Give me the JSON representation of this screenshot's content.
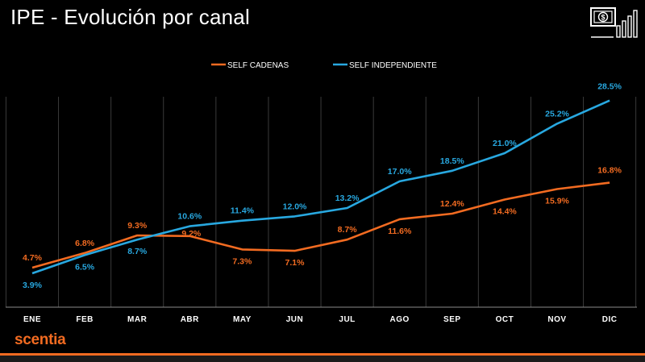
{
  "title": "IPE - Evolución por canal",
  "brand": "scentia",
  "logo_icon": "money-growth-icon",
  "colors": {
    "background": "#000000",
    "series_orange": "#f26b21",
    "series_blue": "#28a8e0",
    "grid": "#3a3a3a",
    "text": "#ffffff"
  },
  "chart_data": {
    "type": "line",
    "title": "IPE - Evolución por canal",
    "xlabel": "",
    "ylabel": "",
    "ylim": [
      0,
      30
    ],
    "grid": "vertical",
    "legend": "top-center",
    "categories": [
      "ENE",
      "FEB",
      "MAR",
      "ABR",
      "MAY",
      "JUN",
      "JUL",
      "AGO",
      "SEP",
      "OCT",
      "NOV",
      "DIC"
    ],
    "series": [
      {
        "name": "SELF CADENAS",
        "color": "#f26b21",
        "values": [
          4.7,
          6.8,
          9.3,
          9.2,
          7.3,
          7.1,
          8.7,
          11.6,
          12.4,
          14.4,
          15.9,
          16.8
        ],
        "labels": [
          "4.7%",
          "6.8%",
          "9.3%",
          "9.2%",
          "7.3%",
          "7.1%",
          "8.7%",
          "11.6%",
          "12.4%",
          "14.4%",
          "15.9%",
          "16.8%"
        ]
      },
      {
        "name": "SELF INDEPENDIENTE",
        "color": "#28a8e0",
        "values": [
          3.9,
          6.5,
          8.7,
          10.6,
          11.4,
          12.0,
          13.2,
          17.0,
          18.5,
          21.0,
          25.2,
          28.5
        ],
        "labels": [
          "3.9%",
          "6.5%",
          "8.7%",
          "10.6%",
          "11.4%",
          "12.0%",
          "13.2%",
          "17.0%",
          "18.5%",
          "21.0%",
          "25.2%",
          "28.5%"
        ]
      }
    ]
  }
}
